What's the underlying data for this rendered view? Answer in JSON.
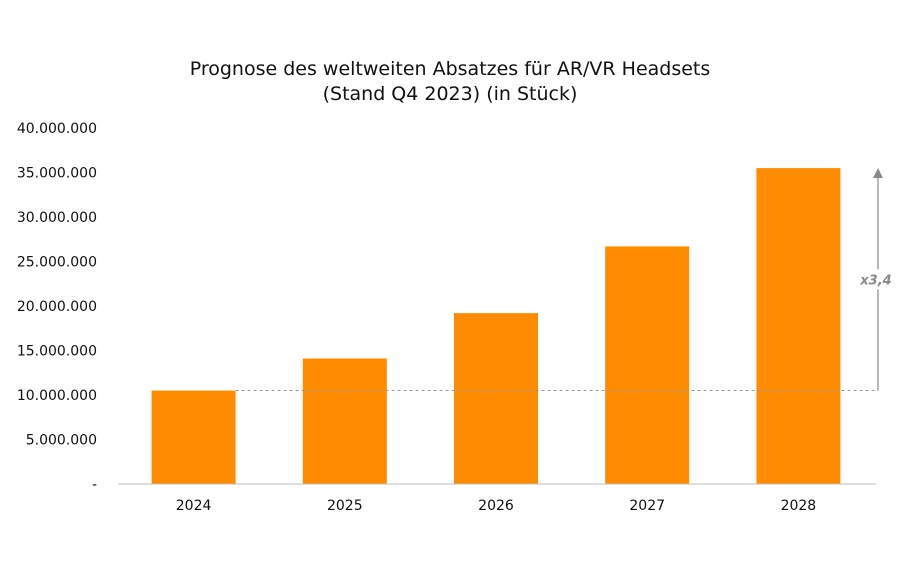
{
  "chart_data": {
    "type": "bar",
    "title_line1": "Prognose des weltweiten Absatzes für AR/VR Headsets",
    "title_line2": "(Stand Q4 2023) (in Stück)",
    "categories": [
      "2024",
      "2025",
      "2026",
      "2027",
      "2028"
    ],
    "values": [
      10500000,
      14100000,
      19200000,
      26700000,
      35500000
    ],
    "ylim": [
      0,
      40000000
    ],
    "ytick_values": [
      0,
      5000000,
      10000000,
      15000000,
      20000000,
      25000000,
      30000000,
      35000000,
      40000000
    ],
    "ytick_labels": [
      "-",
      "5.000.000",
      "10.000.000",
      "15.000.000",
      "20.000.000",
      "25.000.000",
      "30.000.000",
      "35.000.000",
      "40.000.000"
    ],
    "annotation": {
      "text": "x3,4",
      "from_value": 10500000,
      "to_value": 35500000
    },
    "bar_color": "#FF8C00",
    "grid": false
  }
}
